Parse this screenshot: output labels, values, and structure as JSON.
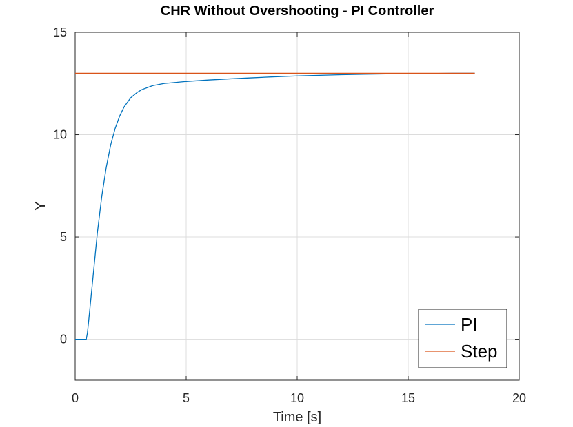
{
  "chart_data": {
    "type": "line",
    "title": "CHR Without Overshooting - PI Controller",
    "xlabel": "Time [s]",
    "ylabel": "Y",
    "xlim": [
      0,
      20
    ],
    "ylim": [
      -2,
      15
    ],
    "xticks": [
      0,
      5,
      10,
      15,
      20
    ],
    "yticks": [
      0,
      5,
      10,
      15
    ],
    "grid": true,
    "legend_placement": "bottom-right",
    "series": [
      {
        "name": "PI",
        "color": "#0072BD",
        "x": [
          0,
          0.5,
          0.55,
          0.6,
          0.7,
          0.8,
          0.9,
          1.0,
          1.2,
          1.4,
          1.6,
          1.8,
          2.0,
          2.2,
          2.5,
          2.8,
          3.0,
          3.5,
          4.0,
          4.5,
          5.0,
          6.0,
          7.0,
          8.0,
          9.0,
          10.0,
          11.0,
          12.0,
          13.0,
          14.0,
          15.0,
          16.0,
          17.0,
          18.0
        ],
        "y": [
          0,
          0,
          0.3,
          0.8,
          1.9,
          3.0,
          4.1,
          5.2,
          7.0,
          8.4,
          9.5,
          10.3,
          10.9,
          11.35,
          11.8,
          12.07,
          12.2,
          12.4,
          12.5,
          12.55,
          12.6,
          12.67,
          12.73,
          12.78,
          12.83,
          12.87,
          12.9,
          12.93,
          12.95,
          12.97,
          12.98,
          12.99,
          13.0,
          13.0
        ]
      },
      {
        "name": "Step",
        "color": "#D95319",
        "x": [
          0,
          18
        ],
        "y": [
          13,
          13
        ]
      }
    ]
  }
}
